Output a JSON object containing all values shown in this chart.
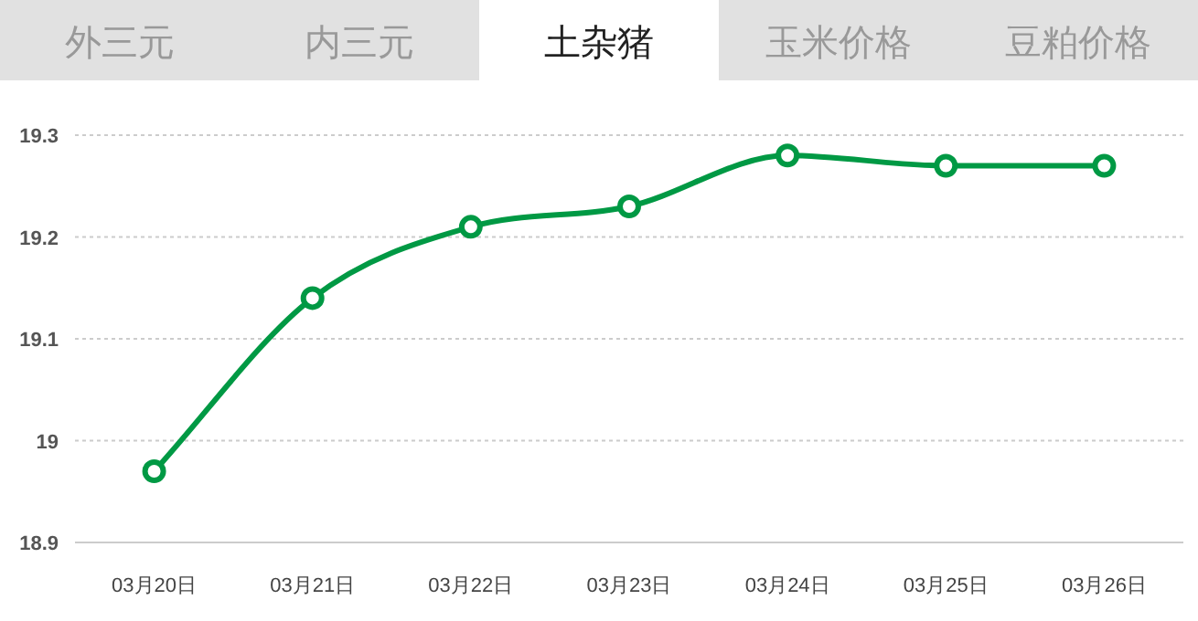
{
  "chart_data": {
    "type": "line",
    "title": "土杂猪",
    "annotations": [
      "外三元",
      "内三元",
      "玉米价格",
      "豆粕价格"
    ],
    "categories": [
      "03月20日",
      "03月21日",
      "03月22日",
      "03月23日",
      "03月24日",
      "03月25日",
      "03月26日"
    ],
    "series": [
      {
        "color": "#009944",
        "values": [
          18.97,
          19.14,
          19.21,
          19.23,
          19.28,
          19.27,
          19.27
        ]
      }
    ],
    "ylim": [
      18.9,
      19.3
    ],
    "yticks": [
      18.9,
      19,
      19.1,
      19.2,
      19.3
    ],
    "grid": "y",
    "marker": "circle",
    "line_style": "solid"
  }
}
